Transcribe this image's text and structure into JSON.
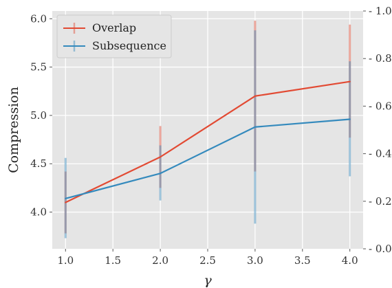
{
  "chart_data": {
    "type": "line",
    "x": [
      1.0,
      2.0,
      3.0,
      4.0
    ],
    "xlabel": "γ",
    "ylabel": "Compression",
    "xlim": [
      0.86,
      4.14
    ],
    "ylim": [
      3.62,
      6.08
    ],
    "xticks": [
      1.0,
      1.5,
      2.0,
      2.5,
      3.0,
      3.5,
      4.0
    ],
    "xtick_labels": [
      "1.0",
      "1.5",
      "2.0",
      "2.5",
      "3.0",
      "3.5",
      "4.0"
    ],
    "yticks": [
      4.0,
      4.5,
      5.0,
      5.5,
      6.0
    ],
    "ytick_labels": [
      "4.0",
      "4.5",
      "5.0",
      "5.5",
      "6.0"
    ],
    "y2lim": [
      0.0,
      1.0
    ],
    "y2ticks": [
      0.0,
      0.2,
      0.4,
      0.6,
      0.8,
      1.0
    ],
    "y2tick_labels": [
      "0.0",
      "0.2",
      "0.4",
      "0.6",
      "0.8",
      "1.0"
    ],
    "grid": true,
    "legend_position": "top-left",
    "series": [
      {
        "name": "Overlap",
        "color": "#e24a33",
        "values": [
          4.1,
          4.57,
          5.2,
          5.35
        ],
        "err_low": [
          3.78,
          4.25,
          4.42,
          4.77
        ],
        "err_high": [
          4.42,
          4.89,
          5.98,
          5.94
        ]
      },
      {
        "name": "Subsequence",
        "color": "#348abd",
        "values": [
          4.14,
          4.4,
          4.88,
          4.96
        ],
        "err_low": [
          3.73,
          4.12,
          3.88,
          4.37
        ],
        "err_high": [
          4.56,
          4.69,
          5.88,
          5.56
        ]
      }
    ]
  }
}
